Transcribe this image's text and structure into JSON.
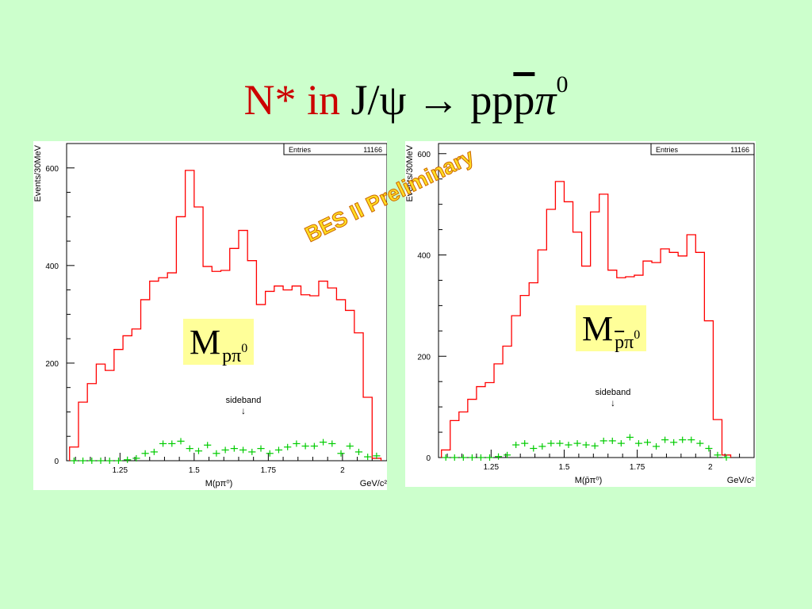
{
  "slide": {
    "title_red": "N* in",
    "title_black": "J/ψ → pp",
    "title_bar": "p",
    "title_pi": "π",
    "title_sup": "0",
    "watermark": "BES II Preliminary",
    "background_color": "#ccffcc"
  },
  "labels": {
    "left": {
      "main": "M",
      "sub": "pπ",
      "sup": "0"
    },
    "right": {
      "main": "M",
      "sub_bar": "p",
      "sub": "π",
      "sup": "0"
    }
  },
  "chart_data": [
    {
      "type": "histogram",
      "stats_label": "Entries",
      "stats_value": "11166",
      "ylabel": "Events/30MeV",
      "xlabel": "M(pπ⁰)",
      "xunit": "GeV/c²",
      "xlim": [
        1.07,
        2.15
      ],
      "ylim": [
        0,
        650
      ],
      "xticks": [
        "1.25",
        "1.5",
        "1.75",
        "2"
      ],
      "yticks": [
        "0",
        "200",
        "400",
        "600"
      ],
      "bin_width": 0.03,
      "bin_start": 1.08,
      "signal_color": "#ff0000",
      "sideband_color": "#00cc00",
      "signal_values": [
        28,
        120,
        158,
        198,
        185,
        228,
        256,
        270,
        330,
        368,
        375,
        385,
        500,
        595,
        520,
        398,
        388,
        390,
        435,
        472,
        410,
        320,
        347,
        358,
        350,
        358,
        340,
        338,
        368,
        354,
        330,
        308,
        262,
        130,
        5
      ],
      "sideband_values": [
        0,
        0,
        0,
        0,
        0,
        0,
        2,
        5,
        15,
        18,
        35,
        35,
        40,
        25,
        20,
        32,
        15,
        22,
        25,
        22,
        18,
        25,
        15,
        22,
        28,
        35,
        30,
        30,
        38,
        35,
        15,
        30,
        18,
        8,
        10
      ],
      "annotation": "sideband",
      "annotation_arrow": "↓"
    },
    {
      "type": "histogram",
      "stats_label": "Entries",
      "stats_value": "11166",
      "ylabel": "Events/30MeV",
      "xlabel": "M(p̄π⁰)",
      "xunit": "GeV/c²",
      "xlim": [
        1.07,
        2.15
      ],
      "ylim": [
        0,
        620
      ],
      "xticks": [
        "1.25",
        "1.5",
        "1.75",
        "2"
      ],
      "yticks": [
        "0",
        "200",
        "400",
        "600"
      ],
      "bin_width": 0.03,
      "bin_start": 1.08,
      "signal_color": "#ff0000",
      "sideband_color": "#00cc00",
      "signal_values": [
        15,
        73,
        90,
        115,
        140,
        148,
        185,
        220,
        280,
        320,
        345,
        410,
        490,
        545,
        505,
        445,
        378,
        485,
        520,
        370,
        355,
        357,
        360,
        388,
        385,
        412,
        405,
        398,
        440,
        405,
        270,
        75,
        5
      ],
      "sideband_values": [
        0,
        0,
        0,
        0,
        0,
        0,
        2,
        5,
        25,
        28,
        18,
        22,
        28,
        28,
        25,
        28,
        25,
        23,
        33,
        33,
        28,
        40,
        28,
        30,
        22,
        35,
        30,
        35,
        35,
        28,
        18,
        5,
        0
      ],
      "annotation": "sideband",
      "annotation_arrow": "↓"
    }
  ]
}
